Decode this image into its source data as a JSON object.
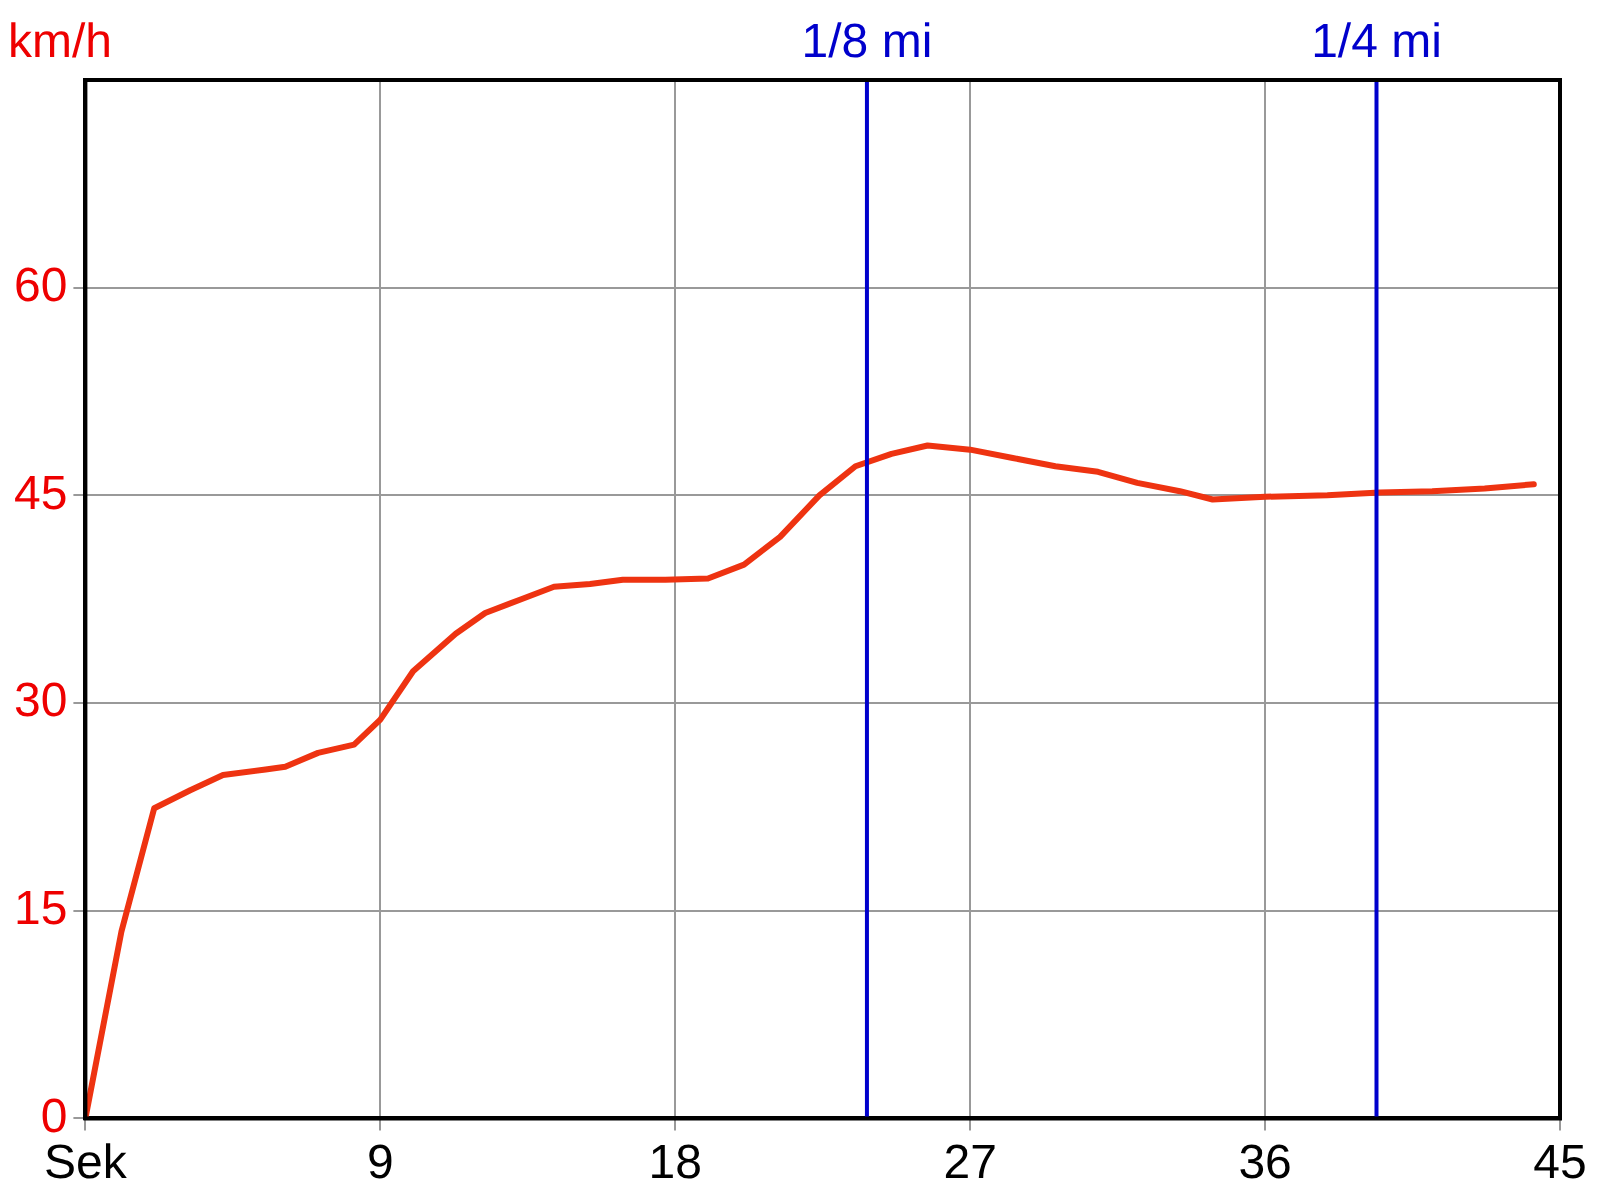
{
  "chart_data": {
    "type": "line",
    "ylabel": "km/h",
    "x": [
      0,
      1.1,
      2.1,
      3.2,
      4.2,
      5.5,
      6.1,
      7.1,
      8.2,
      9.0,
      10,
      11.3,
      12.2,
      13.3,
      14.3,
      15.4,
      16.4,
      17.7,
      19.0,
      20.1,
      21.2,
      22.4,
      23.5,
      24.6,
      25.7,
      27,
      28.3,
      29.6,
      30.9,
      32.1,
      33.4,
      34.4,
      36,
      37.9,
      39.5,
      41.1,
      42.7,
      44.2
    ],
    "series": [
      {
        "color": "#ee3311",
        "values": [
          0,
          13.5,
          22.4,
          23.7,
          24.8,
          25.2,
          25.4,
          26.4,
          27,
          28.8,
          32.3,
          35,
          36.5,
          37.5,
          38.4,
          38.6,
          38.9,
          38.9,
          39,
          40,
          42,
          45,
          47.1,
          48,
          48.6,
          48.3,
          47.7,
          47.1,
          46.7,
          45.9,
          45.3,
          44.7,
          44.9,
          45,
          45.2,
          45.3,
          45.5,
          45.8
        ]
      }
    ],
    "xlim": [
      0,
      45
    ],
    "xticks": [
      {
        "value": 0,
        "label": "Sek"
      },
      9,
      18,
      27,
      36,
      45
    ],
    "ylim": [
      0,
      75
    ],
    "yticks": [
      0,
      15,
      30,
      45,
      60
    ],
    "ref_lines": [
      {
        "axis": "x",
        "value": 23.85,
        "label": "1/8 mi",
        "color": "#0000cc"
      },
      {
        "axis": "x",
        "value": 39.4,
        "label": "1/4 mi",
        "color": "#0000cc"
      }
    ],
    "grid": true,
    "legend": false,
    "marker": "none",
    "line_style": "solid"
  }
}
